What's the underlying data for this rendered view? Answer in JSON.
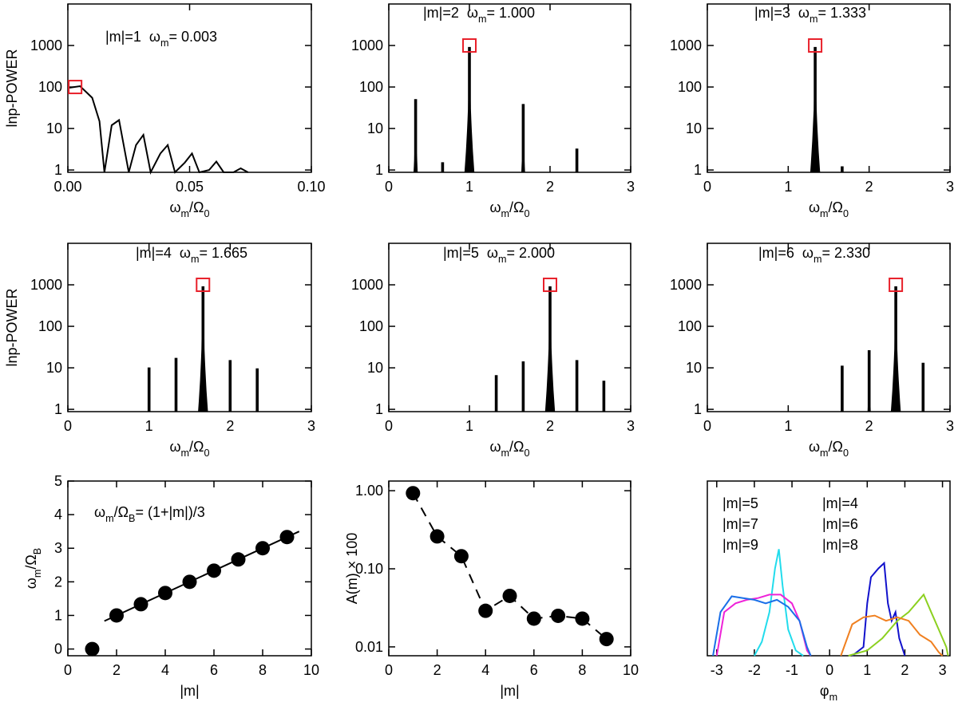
{
  "chart_data": [
    {
      "type": "line",
      "annotation": [
        "|m|=1  ω",
        "m",
        "= 0.003"
      ],
      "x": [
        0,
        0.005,
        0.01,
        0.013,
        0.015,
        0.018,
        0.021,
        0.025,
        0.028,
        0.031,
        0.034,
        0.038,
        0.041,
        0.044,
        0.048,
        0.051,
        0.054,
        0.058,
        0.061,
        0.064,
        0.068,
        0.071,
        0.074
      ],
      "values": [
        95,
        105,
        55,
        15,
        0.88,
        12,
        16,
        0.88,
        4,
        7,
        0.88,
        2.5,
        4,
        0.88,
        1.5,
        2.5,
        0.88,
        1,
        1.6,
        0.88,
        0.88,
        1.1,
        0.88
      ],
      "color": "#000000",
      "xlim": [
        0,
        0.1
      ],
      "xticks": [
        {
          "value": 0,
          "label": "0.00"
        },
        {
          "value": 0.05,
          "label": "0.05"
        },
        {
          "value": 0.1,
          "label": "0.10"
        }
      ],
      "ylim": [
        0.88,
        10000
      ],
      "yticks": [
        1,
        10,
        100,
        1000
      ],
      "log_y": true,
      "xlabel": [
        "ω",
        "m",
        "/Ω",
        "0"
      ],
      "ylabel": "lnp-POWER",
      "marker": {
        "x": 0.003,
        "y": 100,
        "color": "#e8202a"
      }
    },
    {
      "type": "spike",
      "annotation": [
        "|m|=2  ω",
        "m",
        "= 1.000"
      ],
      "x": [
        0.333,
        0.667,
        1.0,
        1.667,
        2.333
      ],
      "values": [
        50,
        1.5,
        900,
        38,
        3.2
      ],
      "color": "#000000",
      "xlim": [
        0,
        3
      ],
      "xticks": [
        0,
        1,
        2,
        3
      ],
      "ylim": [
        0.88,
        10000
      ],
      "yticks": [
        1,
        10,
        100,
        1000
      ],
      "log_y": true,
      "xlabel": [
        "ω",
        "m",
        "/Ω",
        "0"
      ],
      "marker": {
        "x": 1.0,
        "y": 1000,
        "color": "#e8202a"
      }
    },
    {
      "type": "spike",
      "annotation": [
        "|m|=3  ω",
        "m",
        "= 1.333"
      ],
      "x": [
        1.333,
        1.667
      ],
      "values": [
        900,
        1.2
      ],
      "color": "#000000",
      "xlim": [
        0,
        3
      ],
      "xticks": [
        0,
        1,
        2,
        3
      ],
      "ylim": [
        0.88,
        10000
      ],
      "yticks": [
        1,
        10,
        100,
        1000
      ],
      "log_y": true,
      "xlabel": [
        "ω",
        "m",
        "/Ω",
        "0"
      ],
      "marker": {
        "x": 1.333,
        "y": 1000,
        "color": "#e8202a"
      }
    },
    {
      "type": "spike",
      "annotation": [
        "|m|=4  ω",
        "m",
        "= 1.665"
      ],
      "x": [
        1.0,
        1.333,
        1.665,
        2.0,
        2.333
      ],
      "values": [
        10,
        17,
        900,
        15,
        9.5
      ],
      "color": "#000000",
      "xlim": [
        0,
        3
      ],
      "xticks": [
        0,
        1,
        2,
        3
      ],
      "ylim": [
        0.88,
        10000
      ],
      "yticks": [
        1,
        10,
        100,
        1000
      ],
      "log_y": true,
      "xlabel": [
        "ω",
        "m",
        "/Ω",
        "0"
      ],
      "ylabel": "lnp-POWER",
      "marker": {
        "x": 1.665,
        "y": 1000,
        "color": "#e8202a"
      }
    },
    {
      "type": "spike",
      "annotation": [
        "|m|=5  ω",
        "m",
        "= 2.000"
      ],
      "x": [
        1.333,
        1.667,
        2.0,
        2.333,
        2.667
      ],
      "values": [
        6.5,
        14,
        900,
        15,
        4.8
      ],
      "color": "#000000",
      "xlim": [
        0,
        3
      ],
      "xticks": [
        0,
        1,
        2,
        3
      ],
      "ylim": [
        0.88,
        10000
      ],
      "yticks": [
        1,
        10,
        100,
        1000
      ],
      "log_y": true,
      "xlabel": [
        "ω",
        "m",
        "/Ω",
        "0"
      ],
      "marker": {
        "x": 2.0,
        "y": 1000,
        "color": "#e8202a"
      }
    },
    {
      "type": "spike",
      "annotation": [
        "|m|=6  ω",
        "m",
        "= 2.330"
      ],
      "x": [
        1.667,
        2.0,
        2.33,
        2.667
      ],
      "values": [
        11,
        26,
        900,
        13
      ],
      "color": "#000000",
      "xlim": [
        0,
        3
      ],
      "xticks": [
        0,
        1,
        2,
        3
      ],
      "ylim": [
        0.88,
        10000
      ],
      "yticks": [
        1,
        10,
        100,
        1000
      ],
      "log_y": true,
      "xlabel": [
        "ω",
        "m",
        "/Ω",
        "0"
      ],
      "marker": {
        "x": 2.33,
        "y": 1000,
        "color": "#e8202a"
      }
    },
    {
      "type": "scatter",
      "annotation": [
        "ω",
        "m",
        "/Ω",
        "B",
        "= (1+|m|)/3"
      ],
      "x": [
        1,
        2,
        3,
        4,
        5,
        6,
        7,
        8,
        9
      ],
      "values": [
        0,
        1.0,
        1.333,
        1.667,
        2.0,
        2.333,
        2.667,
        3.0,
        3.333
      ],
      "color": "#000000",
      "fit": {
        "x": [
          1.5,
          9.5
        ],
        "y": [
          0.833,
          3.5
        ]
      },
      "xlim": [
        0,
        10
      ],
      "xticks": [
        0,
        2,
        4,
        6,
        8,
        10
      ],
      "ylim": [
        -0.2,
        5
      ],
      "yticks": [
        0,
        1,
        2,
        3,
        4,
        5
      ],
      "xlabel": "|m|",
      "ylabel": [
        "ω",
        "m",
        "/Ω",
        "B"
      ]
    },
    {
      "type": "line",
      "markers": true,
      "line_style": "dashed",
      "x": [
        1,
        2,
        3,
        4,
        5,
        6,
        7,
        8,
        9
      ],
      "values": [
        0.93,
        0.26,
        0.145,
        0.029,
        0.045,
        0.023,
        0.025,
        0.023,
        0.0126
      ],
      "color": "#000000",
      "xlim": [
        0,
        10
      ],
      "xticks": [
        0,
        2,
        4,
        6,
        8,
        10
      ],
      "ylim": [
        0.0077,
        1.33
      ],
      "log_y": true,
      "yticks": [
        {
          "value": 0.01,
          "label": "0.01"
        },
        {
          "value": 0.1,
          "label": "0.10"
        },
        {
          "value": 1,
          "label": "1.00"
        }
      ],
      "xlabel": "|m|",
      "ylabel": "A(m) × 100"
    },
    {
      "type": "line",
      "xlim": [
        -3.25,
        3.2
      ],
      "xticks": [
        -3,
        -2,
        -1,
        0,
        1,
        2,
        3
      ],
      "ylim": [
        0,
        1
      ],
      "xlabel": [
        "φ",
        "m"
      ],
      "series": [
        {
          "name": "|m|=5",
          "color": "#22dcec",
          "x": [
            -2.0,
            -1.8,
            -1.6,
            -1.45,
            -1.35,
            -1.25,
            -1.1,
            -0.9,
            -0.7
          ],
          "values": [
            0,
            0.08,
            0.25,
            0.5,
            0.61,
            0.4,
            0.15,
            0.03,
            0
          ]
        },
        {
          "name": "|m|=7",
          "color": "#ee22d8",
          "x": [
            -3.0,
            -2.8,
            -2.5,
            -2.2,
            -1.9,
            -1.6,
            -1.3,
            -1.0,
            -0.8,
            -0.6,
            -0.5
          ],
          "values": [
            0,
            0.25,
            0.3,
            0.32,
            0.33,
            0.35,
            0.35,
            0.3,
            0.2,
            0.03,
            0
          ]
        },
        {
          "name": "|m|=9",
          "color": "#1a6fe8",
          "x": [
            -3.1,
            -2.9,
            -2.6,
            -2.3,
            -2.0,
            -1.7,
            -1.4,
            -1.1,
            -0.8,
            -0.6,
            -0.5
          ],
          "values": [
            0,
            0.25,
            0.34,
            0.33,
            0.32,
            0.3,
            0.32,
            0.28,
            0.2,
            0.05,
            0
          ]
        },
        {
          "name": "|m|=4",
          "color": "#1212cc",
          "x": [
            0.6,
            0.9,
            1.0,
            1.1,
            1.3,
            1.45,
            1.55,
            1.65,
            1.75,
            1.85,
            2.0
          ],
          "values": [
            0,
            0.05,
            0.3,
            0.45,
            0.5,
            0.53,
            0.3,
            0.2,
            0.25,
            0.1,
            0
          ]
        },
        {
          "name": "|m|=6",
          "color": "#8cd020",
          "x": [
            0.5,
            1.0,
            1.4,
            1.8,
            2.1,
            2.3,
            2.5,
            2.7,
            2.9,
            3.1,
            3.15
          ],
          "values": [
            0,
            0.03,
            0.1,
            0.2,
            0.25,
            0.3,
            0.35,
            0.25,
            0.15,
            0.05,
            0
          ]
        },
        {
          "name": "|m|=8",
          "color": "#f08020",
          "x": [
            0.3,
            0.6,
            0.9,
            1.2,
            1.5,
            1.8,
            2.1,
            2.4,
            2.7,
            2.9,
            3.0
          ],
          "values": [
            0,
            0.18,
            0.22,
            0.23,
            0.2,
            0.22,
            0.2,
            0.12,
            0.08,
            0.02,
            0
          ]
        }
      ]
    }
  ]
}
